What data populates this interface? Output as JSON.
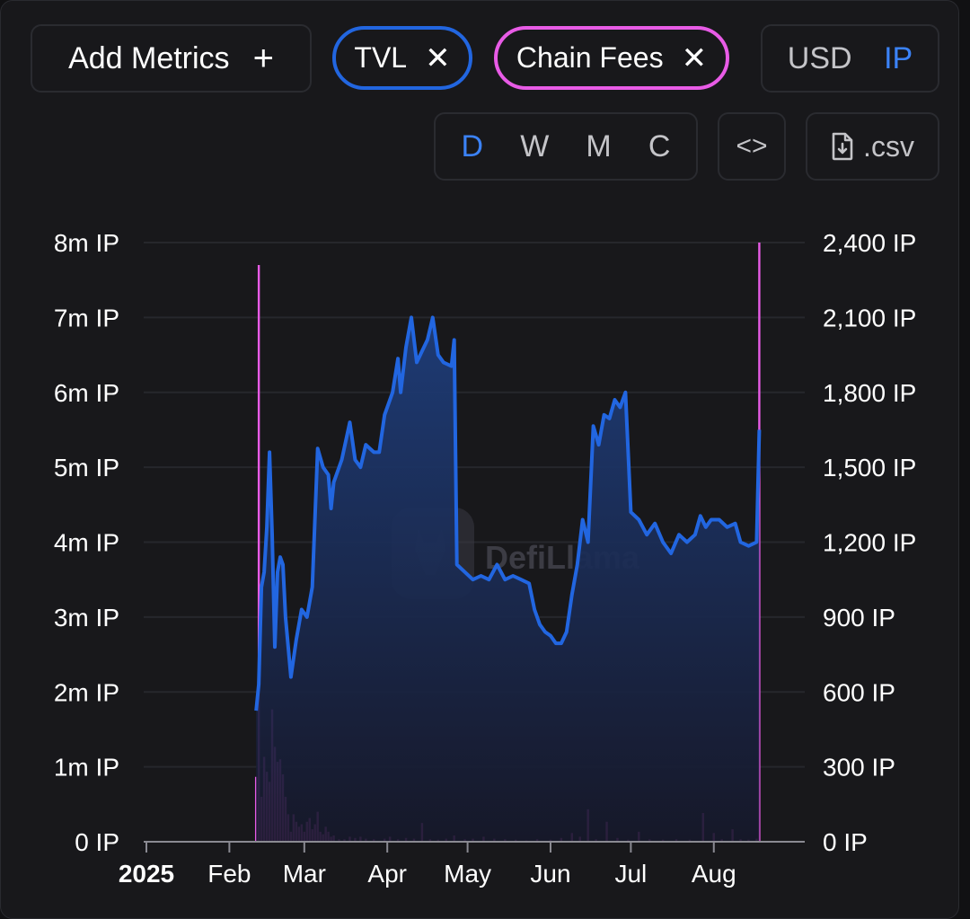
{
  "toolbar": {
    "add_metrics_label": "Add Metrics",
    "add_icon": "plus-icon",
    "metric_pills": [
      {
        "label": "TVL",
        "color": "#2266e0"
      },
      {
        "label": "Chain Fees",
        "color": "#e85be6"
      }
    ],
    "currency_options": [
      "USD",
      "IP"
    ],
    "currency_selected": "IP",
    "period_options": [
      "D",
      "W",
      "M",
      "C"
    ],
    "period_selected": "D",
    "embed_icon": "code-icon",
    "csv_label": ".csv",
    "csv_icon": "file-download-icon"
  },
  "watermark": "DefiLlama",
  "chart_data": {
    "type": "line",
    "x_labels": [
      "2025",
      "Feb",
      "Mar",
      "Apr",
      "May",
      "Jun",
      "Jul",
      "Aug"
    ],
    "left_axis": {
      "ticks": [
        "0 IP",
        "1m IP",
        "2m IP",
        "3m IP",
        "4m IP",
        "5m IP",
        "6m IP",
        "7m IP",
        "8m IP"
      ],
      "ylim": [
        0,
        8000000
      ]
    },
    "right_axis": {
      "ticks": [
        "0 IP",
        "300 IP",
        "600 IP",
        "900 IP",
        "1,200 IP",
        "1,500 IP",
        "1,800 IP",
        "2,100 IP",
        "2,400 IP"
      ],
      "ylim": [
        0,
        2400
      ]
    },
    "grid": true,
    "series": [
      {
        "name": "TVL",
        "type": "area",
        "color": "#2266e0",
        "axis": "left",
        "points": [
          [
            "2025-02-12",
            1.75
          ],
          [
            "2025-02-13",
            2.1
          ],
          [
            "2025-02-14",
            3.4
          ],
          [
            "2025-02-15",
            3.6
          ],
          [
            "2025-02-16",
            4.2
          ],
          [
            "2025-02-17",
            5.2
          ],
          [
            "2025-02-18",
            4.1
          ],
          [
            "2025-02-19",
            2.6
          ],
          [
            "2025-02-20",
            3.6
          ],
          [
            "2025-02-21",
            3.8
          ],
          [
            "2025-02-22",
            3.7
          ],
          [
            "2025-02-23",
            3.0
          ],
          [
            "2025-02-25",
            2.2
          ],
          [
            "2025-02-27",
            2.7
          ],
          [
            "2025-03-01",
            3.1
          ],
          [
            "2025-03-03",
            3.0
          ],
          [
            "2025-03-05",
            3.4
          ],
          [
            "2025-03-07",
            5.25
          ],
          [
            "2025-03-09",
            5.0
          ],
          [
            "2025-03-11",
            4.9
          ],
          [
            "2025-03-12",
            4.45
          ],
          [
            "2025-03-13",
            4.8
          ],
          [
            "2025-03-16",
            5.1
          ],
          [
            "2025-03-19",
            5.6
          ],
          [
            "2025-03-21",
            5.1
          ],
          [
            "2025-03-23",
            5.0
          ],
          [
            "2025-03-25",
            5.3
          ],
          [
            "2025-03-28",
            5.2
          ],
          [
            "2025-03-30",
            5.2
          ],
          [
            "2025-04-01",
            5.7
          ],
          [
            "2025-04-04",
            6.0
          ],
          [
            "2025-04-06",
            6.45
          ],
          [
            "2025-04-07",
            6.0
          ],
          [
            "2025-04-09",
            6.6
          ],
          [
            "2025-04-11",
            7.0
          ],
          [
            "2025-04-13",
            6.4
          ],
          [
            "2025-04-15",
            6.55
          ],
          [
            "2025-04-17",
            6.7
          ],
          [
            "2025-04-19",
            7.0
          ],
          [
            "2025-04-21",
            6.5
          ],
          [
            "2025-04-23",
            6.4
          ],
          [
            "2025-04-26",
            6.35
          ],
          [
            "2025-04-27",
            6.7
          ],
          [
            "2025-04-28",
            3.7
          ],
          [
            "2025-05-01",
            3.6
          ],
          [
            "2025-05-04",
            3.5
          ],
          [
            "2025-05-07",
            3.55
          ],
          [
            "2025-05-10",
            3.5
          ],
          [
            "2025-05-13",
            3.7
          ],
          [
            "2025-05-16",
            3.5
          ],
          [
            "2025-05-19",
            3.55
          ],
          [
            "2025-05-22",
            3.5
          ],
          [
            "2025-05-25",
            3.45
          ],
          [
            "2025-05-27",
            3.1
          ],
          [
            "2025-05-29",
            2.9
          ],
          [
            "2025-05-31",
            2.8
          ],
          [
            "2025-06-02",
            2.75
          ],
          [
            "2025-06-04",
            2.65
          ],
          [
            "2025-06-06",
            2.65
          ],
          [
            "2025-06-08",
            2.8
          ],
          [
            "2025-06-10",
            3.3
          ],
          [
            "2025-06-12",
            3.7
          ],
          [
            "2025-06-14",
            4.3
          ],
          [
            "2025-06-16",
            4.0
          ],
          [
            "2025-06-18",
            5.55
          ],
          [
            "2025-06-20",
            5.3
          ],
          [
            "2025-06-22",
            5.7
          ],
          [
            "2025-06-24",
            5.65
          ],
          [
            "2025-06-26",
            5.9
          ],
          [
            "2025-06-28",
            5.8
          ],
          [
            "2025-06-30",
            6.0
          ],
          [
            "2025-07-02",
            4.4
          ],
          [
            "2025-07-05",
            4.3
          ],
          [
            "2025-07-08",
            4.1
          ],
          [
            "2025-07-11",
            4.25
          ],
          [
            "2025-07-14",
            4.0
          ],
          [
            "2025-07-17",
            3.85
          ],
          [
            "2025-07-20",
            4.1
          ],
          [
            "2025-07-23",
            4.0
          ],
          [
            "2025-07-26",
            4.1
          ],
          [
            "2025-07-28",
            4.35
          ],
          [
            "2025-07-30",
            4.2
          ],
          [
            "2025-08-01",
            4.3
          ],
          [
            "2025-08-04",
            4.3
          ],
          [
            "2025-08-07",
            4.2
          ],
          [
            "2025-08-10",
            4.25
          ],
          [
            "2025-08-12",
            4.0
          ],
          [
            "2025-08-15",
            3.95
          ],
          [
            "2025-08-18",
            4.0
          ],
          [
            "2025-08-19",
            5.5
          ]
        ]
      },
      {
        "name": "Chain Fees",
        "type": "bar",
        "color": "#e85be6",
        "axis": "right",
        "points": [
          [
            "2025-02-12",
            260
          ],
          [
            "2025-02-13",
            2310
          ],
          [
            "2025-02-14",
            180
          ],
          [
            "2025-02-15",
            340
          ],
          [
            "2025-02-16",
            280
          ],
          [
            "2025-02-17",
            240
          ],
          [
            "2025-02-18",
            530
          ],
          [
            "2025-02-19",
            380
          ],
          [
            "2025-02-20",
            320
          ],
          [
            "2025-02-21",
            330
          ],
          [
            "2025-02-22",
            270
          ],
          [
            "2025-02-23",
            180
          ],
          [
            "2025-02-24",
            110
          ],
          [
            "2025-02-25",
            40
          ],
          [
            "2025-02-26",
            110
          ],
          [
            "2025-02-27",
            80
          ],
          [
            "2025-02-28",
            60
          ],
          [
            "2025-03-01",
            70
          ],
          [
            "2025-03-02",
            40
          ],
          [
            "2025-03-03",
            80
          ],
          [
            "2025-03-04",
            95
          ],
          [
            "2025-03-05",
            50
          ],
          [
            "2025-03-06",
            70
          ],
          [
            "2025-03-07",
            120
          ],
          [
            "2025-03-08",
            40
          ],
          [
            "2025-03-09",
            30
          ],
          [
            "2025-03-10",
            60
          ],
          [
            "2025-03-11",
            40
          ],
          [
            "2025-03-12",
            20
          ],
          [
            "2025-03-13",
            25
          ],
          [
            "2025-03-15",
            10
          ],
          [
            "2025-03-17",
            10
          ],
          [
            "2025-03-19",
            20
          ],
          [
            "2025-03-21",
            15
          ],
          [
            "2025-03-23",
            20
          ],
          [
            "2025-03-25",
            12
          ],
          [
            "2025-03-28",
            10
          ],
          [
            "2025-04-01",
            12
          ],
          [
            "2025-04-03",
            20
          ],
          [
            "2025-04-06",
            10
          ],
          [
            "2025-04-09",
            15
          ],
          [
            "2025-04-12",
            12
          ],
          [
            "2025-04-15",
            75
          ],
          [
            "2025-04-18",
            10
          ],
          [
            "2025-04-21",
            8
          ],
          [
            "2025-04-24",
            12
          ],
          [
            "2025-04-27",
            25
          ],
          [
            "2025-05-01",
            10
          ],
          [
            "2025-05-04",
            12
          ],
          [
            "2025-05-08",
            20
          ],
          [
            "2025-05-12",
            12
          ],
          [
            "2025-05-16",
            10
          ],
          [
            "2025-05-20",
            8
          ],
          [
            "2025-05-24",
            5
          ],
          [
            "2025-05-28",
            10
          ],
          [
            "2025-06-02",
            8
          ],
          [
            "2025-06-06",
            15
          ],
          [
            "2025-06-10",
            35
          ],
          [
            "2025-06-13",
            20
          ],
          [
            "2025-06-16",
            130
          ],
          [
            "2025-06-19",
            10
          ],
          [
            "2025-06-23",
            80
          ],
          [
            "2025-06-27",
            15
          ],
          [
            "2025-07-01",
            8
          ],
          [
            "2025-07-05",
            40
          ],
          [
            "2025-07-09",
            10
          ],
          [
            "2025-07-14",
            8
          ],
          [
            "2025-07-19",
            10
          ],
          [
            "2025-07-24",
            8
          ],
          [
            "2025-07-29",
            115
          ],
          [
            "2025-08-02",
            35
          ],
          [
            "2025-08-05",
            10
          ],
          [
            "2025-08-09",
            50
          ],
          [
            "2025-08-12",
            10
          ],
          [
            "2025-08-15",
            8
          ],
          [
            "2025-08-18",
            12
          ],
          [
            "2025-08-19",
            2400
          ]
        ]
      }
    ]
  }
}
